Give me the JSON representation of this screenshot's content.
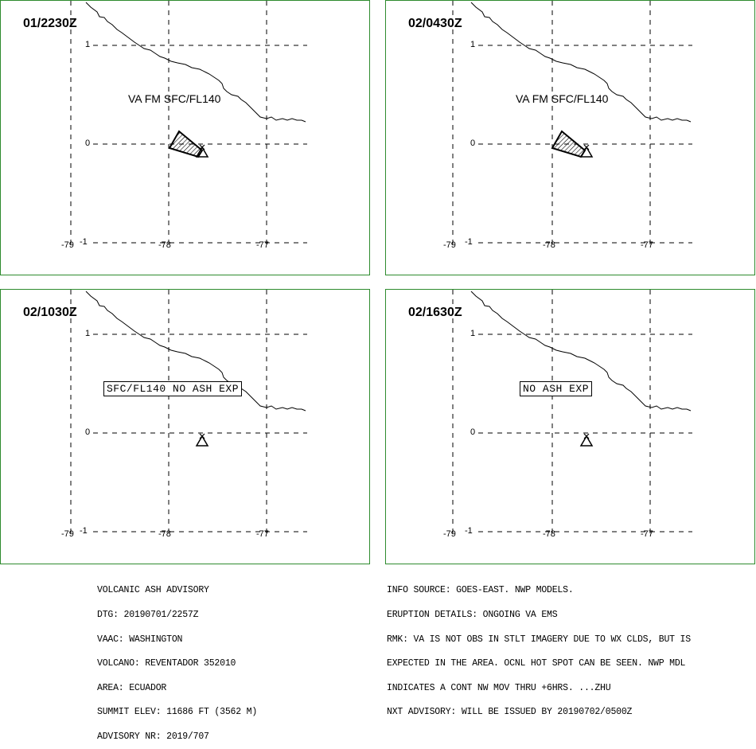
{
  "panels": [
    {
      "time": "01/2230Z",
      "va_label": "VA FM SFC/FL140",
      "boxed_label": "",
      "ash": true
    },
    {
      "time": "02/0430Z",
      "va_label": "VA FM SFC/FL140",
      "boxed_label": "",
      "ash": true
    },
    {
      "time": "02/1030Z",
      "va_label": "",
      "boxed_label": "SFC/FL140  NO  ASH  EXP",
      "ash": false
    },
    {
      "time": "02/1630Z",
      "va_label": "",
      "boxed_label": "NO  ASH  EXP",
      "ash": false
    }
  ],
  "axis": {
    "lat_labels": [
      "1",
      "0",
      "-1"
    ],
    "lon_labels": [
      "-79",
      "-78",
      "-77"
    ]
  },
  "advisory_left": [
    "VOLCANIC ASH ADVISORY",
    "DTG: 20190701/2257Z",
    "VAAC: WASHINGTON",
    "VOLCANO: REVENTADOR 352010",
    "AREA: ECUADOR",
    "SUMMIT ELEV: 11686 FT (3562 M)",
    "ADVISORY NR: 2019/707"
  ],
  "advisory_right": [
    "INFO SOURCE: GOES-EAST. NWP MODELS.",
    "ERUPTION DETAILS: ONGOING VA EMS",
    "RMK: VA IS NOT OBS IN STLT IMAGERY DUE TO WX CLDS, BUT IS",
    "EXPECTED IN THE AREA. OCNL HOT SPOT CAN BE SEEN. NWP MDL",
    "INDICATES A CONT NW MOV THRU +6HRS. ...ZHU",
    "NXT ADVISORY: WILL BE ISSUED BY 20190702/0500Z"
  ],
  "colors": {
    "frame": "#2e8b2e",
    "lines": "#000000"
  }
}
